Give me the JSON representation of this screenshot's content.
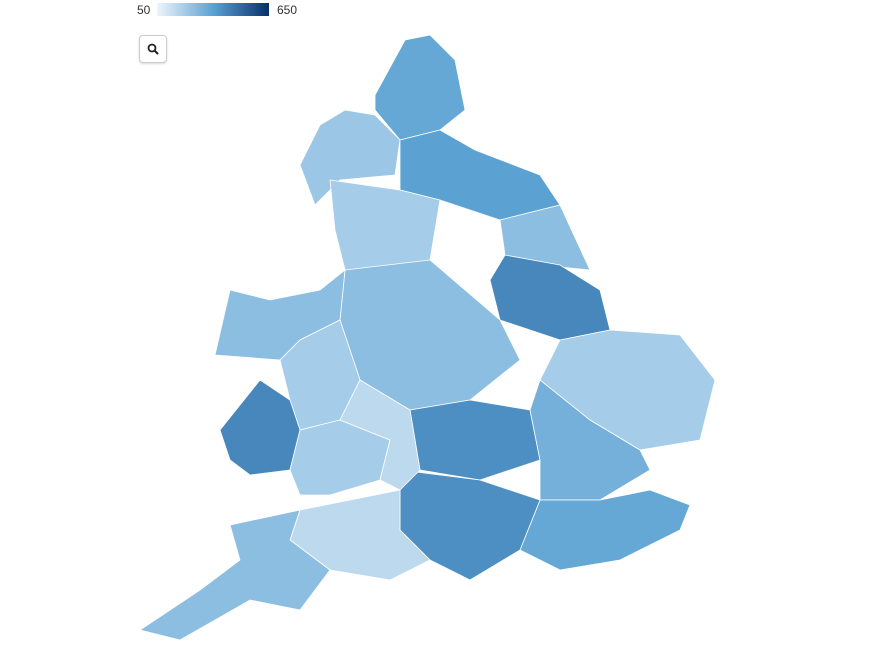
{
  "legend": {
    "min": 50,
    "max": 650,
    "colors": [
      "#eef5fc",
      "#5ba2d3",
      "#08306b"
    ]
  },
  "regions": [
    {
      "value": 330
    },
    {
      "value": 220
    },
    {
      "value": 350
    },
    {
      "value": 250
    },
    {
      "value": 200
    },
    {
      "value": 420
    },
    {
      "value": 250
    },
    {
      "value": 200
    },
    {
      "value": 400
    },
    {
      "value": 300
    },
    {
      "value": 330
    },
    {
      "value": 400
    },
    {
      "value": 150
    },
    {
      "value": 250
    },
    {
      "value": 250
    },
    {
      "value": 200
    },
    {
      "value": 420
    },
    {
      "value": 200
    },
    {
      "value": 150
    }
  ]
}
